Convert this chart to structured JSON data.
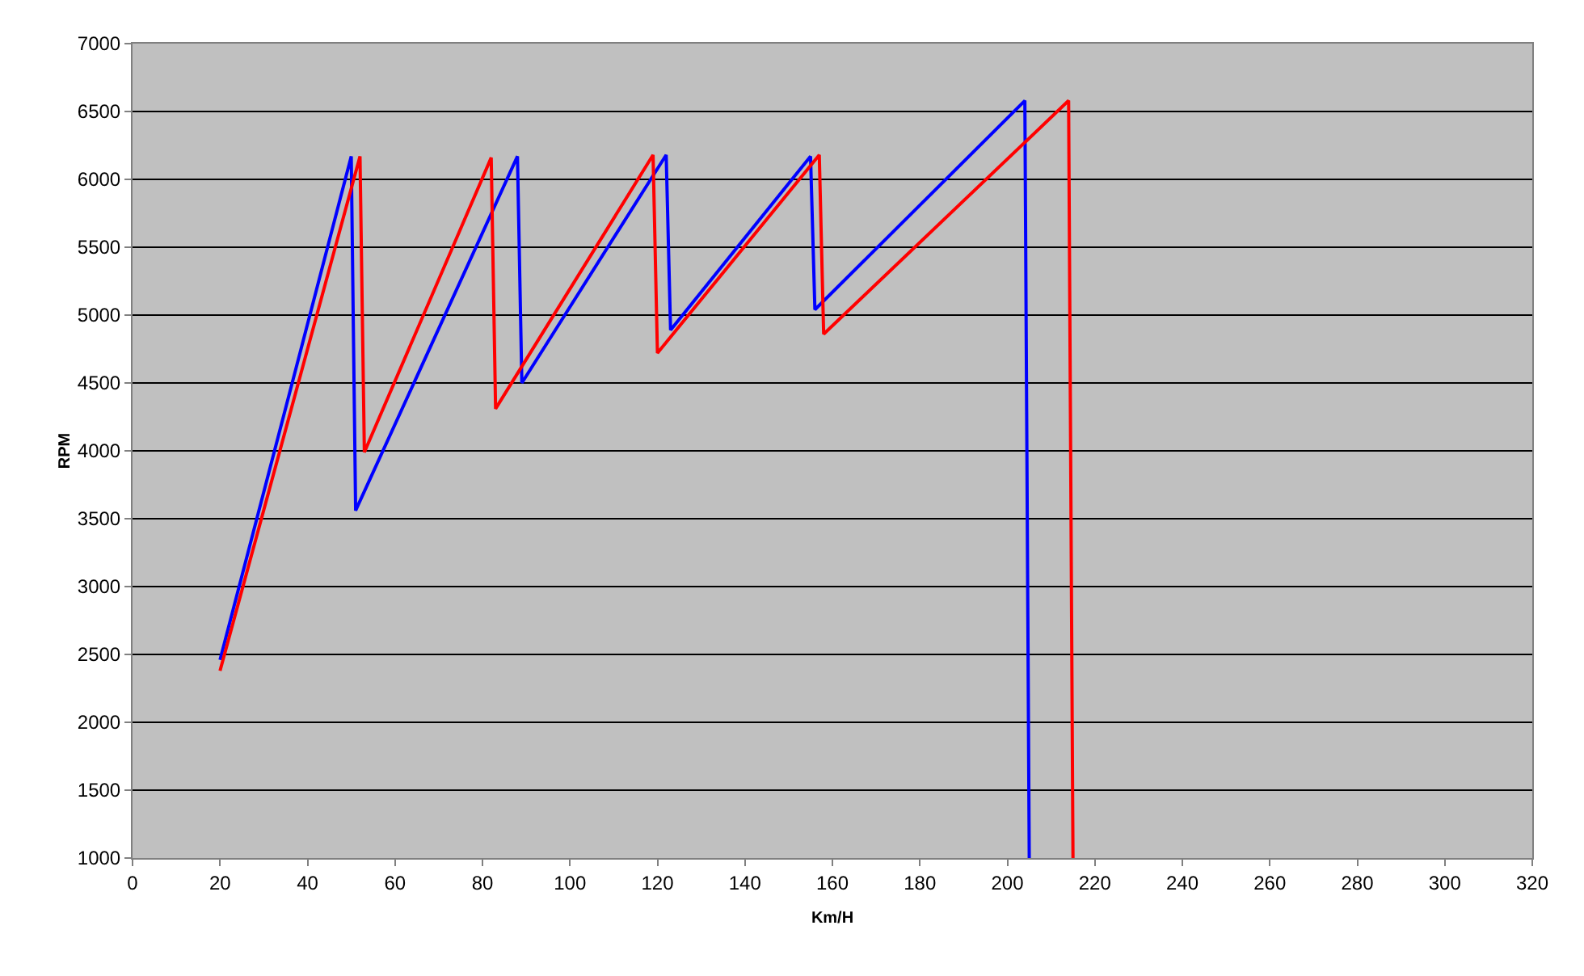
{
  "chart_data": {
    "type": "line",
    "xlabel": "Km/H",
    "ylabel": "RPM",
    "series": [
      {
        "color": "#0000ff",
        "x": [
          20,
          50,
          51,
          88,
          89,
          122,
          123,
          155,
          156,
          204,
          205
        ],
        "values": [
          2460,
          6170,
          3560,
          6170,
          4500,
          6180,
          4890,
          6170,
          5040,
          6580,
          1000
        ]
      },
      {
        "color": "#ff0000",
        "x": [
          20,
          52,
          53,
          82,
          83,
          119,
          120,
          157,
          158,
          214,
          215
        ],
        "values": [
          2380,
          6170,
          3990,
          6160,
          4310,
          6180,
          4720,
          6180,
          4860,
          6580,
          1000
        ]
      }
    ],
    "xlim": [
      0,
      320
    ],
    "xticks": [
      0,
      20,
      40,
      60,
      80,
      100,
      120,
      140,
      160,
      180,
      200,
      220,
      240,
      260,
      280,
      300,
      320
    ],
    "ylim": [
      1000,
      7000
    ],
    "yticks": [
      1000,
      1500,
      2000,
      2500,
      3000,
      3500,
      4000,
      4500,
      5000,
      5500,
      6000,
      6500,
      7000
    ],
    "grid": "y",
    "marker": "none",
    "line_style": "solid"
  }
}
